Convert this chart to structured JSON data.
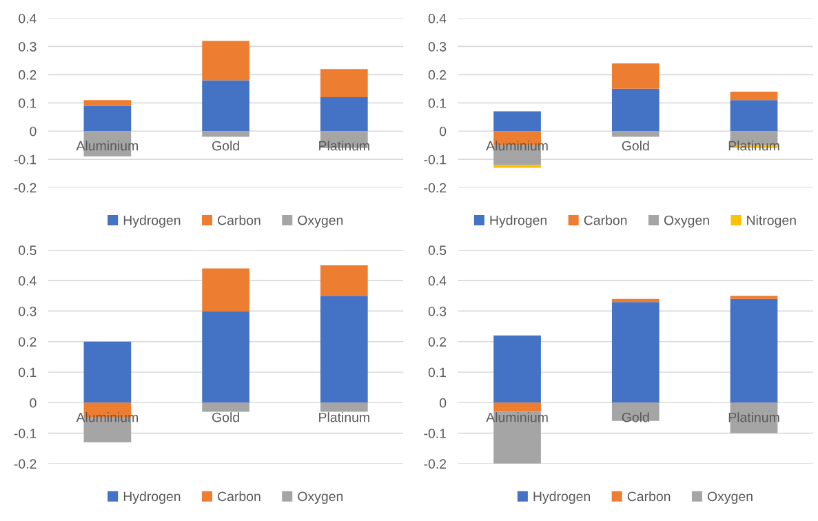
{
  "chart_data": [
    {
      "type": "bar",
      "stacked": true,
      "categories": [
        "Aluminium",
        "Gold",
        "Platinum"
      ],
      "ylim": [
        -0.2,
        0.4
      ],
      "yticks": [
        -0.2,
        -0.1,
        0,
        0.1,
        0.2,
        0.3,
        0.4
      ],
      "grid": "y",
      "legend": "bottom",
      "series": [
        {
          "name": "Hydrogen",
          "color": "#4472c4",
          "values": [
            0.09,
            0.18,
            0.12
          ]
        },
        {
          "name": "Carbon",
          "color": "#ed7d31",
          "values": [
            0.02,
            0.14,
            0.1
          ]
        },
        {
          "name": "Oxygen",
          "color": "#a5a5a5",
          "values": [
            -0.09,
            -0.02,
            -0.06
          ]
        }
      ]
    },
    {
      "type": "bar",
      "stacked": true,
      "categories": [
        "Aluminium",
        "Gold",
        "Platinum"
      ],
      "ylim": [
        -0.2,
        0.4
      ],
      "yticks": [
        -0.2,
        -0.1,
        0,
        0.1,
        0.2,
        0.3,
        0.4
      ],
      "grid": "y",
      "legend": "bottom",
      "series": [
        {
          "name": "Hydrogen",
          "color": "#4472c4",
          "values": [
            0.07,
            0.15,
            0.11
          ]
        },
        {
          "name": "Carbon",
          "color": "#ed7d31",
          "values": [
            -0.05,
            0.09,
            0.03
          ]
        },
        {
          "name": "Oxygen",
          "color": "#a5a5a5",
          "values": [
            -0.07,
            -0.02,
            -0.05
          ]
        },
        {
          "name": "Nitrogen",
          "color": "#ffc000",
          "values": [
            -0.01,
            0,
            -0.01
          ]
        }
      ]
    },
    {
      "type": "bar",
      "stacked": true,
      "categories": [
        "Aluminium",
        "Gold",
        "Platinum"
      ],
      "ylim": [
        -0.2,
        0.5
      ],
      "yticks": [
        -0.2,
        -0.1,
        0,
        0.1,
        0.2,
        0.3,
        0.4,
        0.5
      ],
      "grid": "y",
      "legend": "bottom",
      "series": [
        {
          "name": "Hydrogen",
          "color": "#4472c4",
          "values": [
            0.2,
            0.3,
            0.35
          ]
        },
        {
          "name": "Carbon",
          "color": "#ed7d31",
          "values": [
            -0.05,
            0.14,
            0.1
          ]
        },
        {
          "name": "Oxygen",
          "color": "#a5a5a5",
          "values": [
            -0.08,
            -0.03,
            -0.03
          ]
        }
      ]
    },
    {
      "type": "bar",
      "stacked": true,
      "categories": [
        "Aluminium",
        "Gold",
        "Platinum"
      ],
      "ylim": [
        -0.2,
        0.5
      ],
      "yticks": [
        -0.2,
        -0.1,
        0,
        0.1,
        0.2,
        0.3,
        0.4,
        0.5
      ],
      "grid": "y",
      "legend": "bottom",
      "series": [
        {
          "name": "Hydrogen",
          "color": "#4472c4",
          "values": [
            0.22,
            0.33,
            0.34
          ]
        },
        {
          "name": "Carbon",
          "color": "#ed7d31",
          "values": [
            -0.03,
            0.01,
            0.01
          ]
        },
        {
          "name": "Oxygen",
          "color": "#a5a5a5",
          "values": [
            -0.17,
            -0.06,
            -0.1
          ]
        }
      ]
    }
  ]
}
